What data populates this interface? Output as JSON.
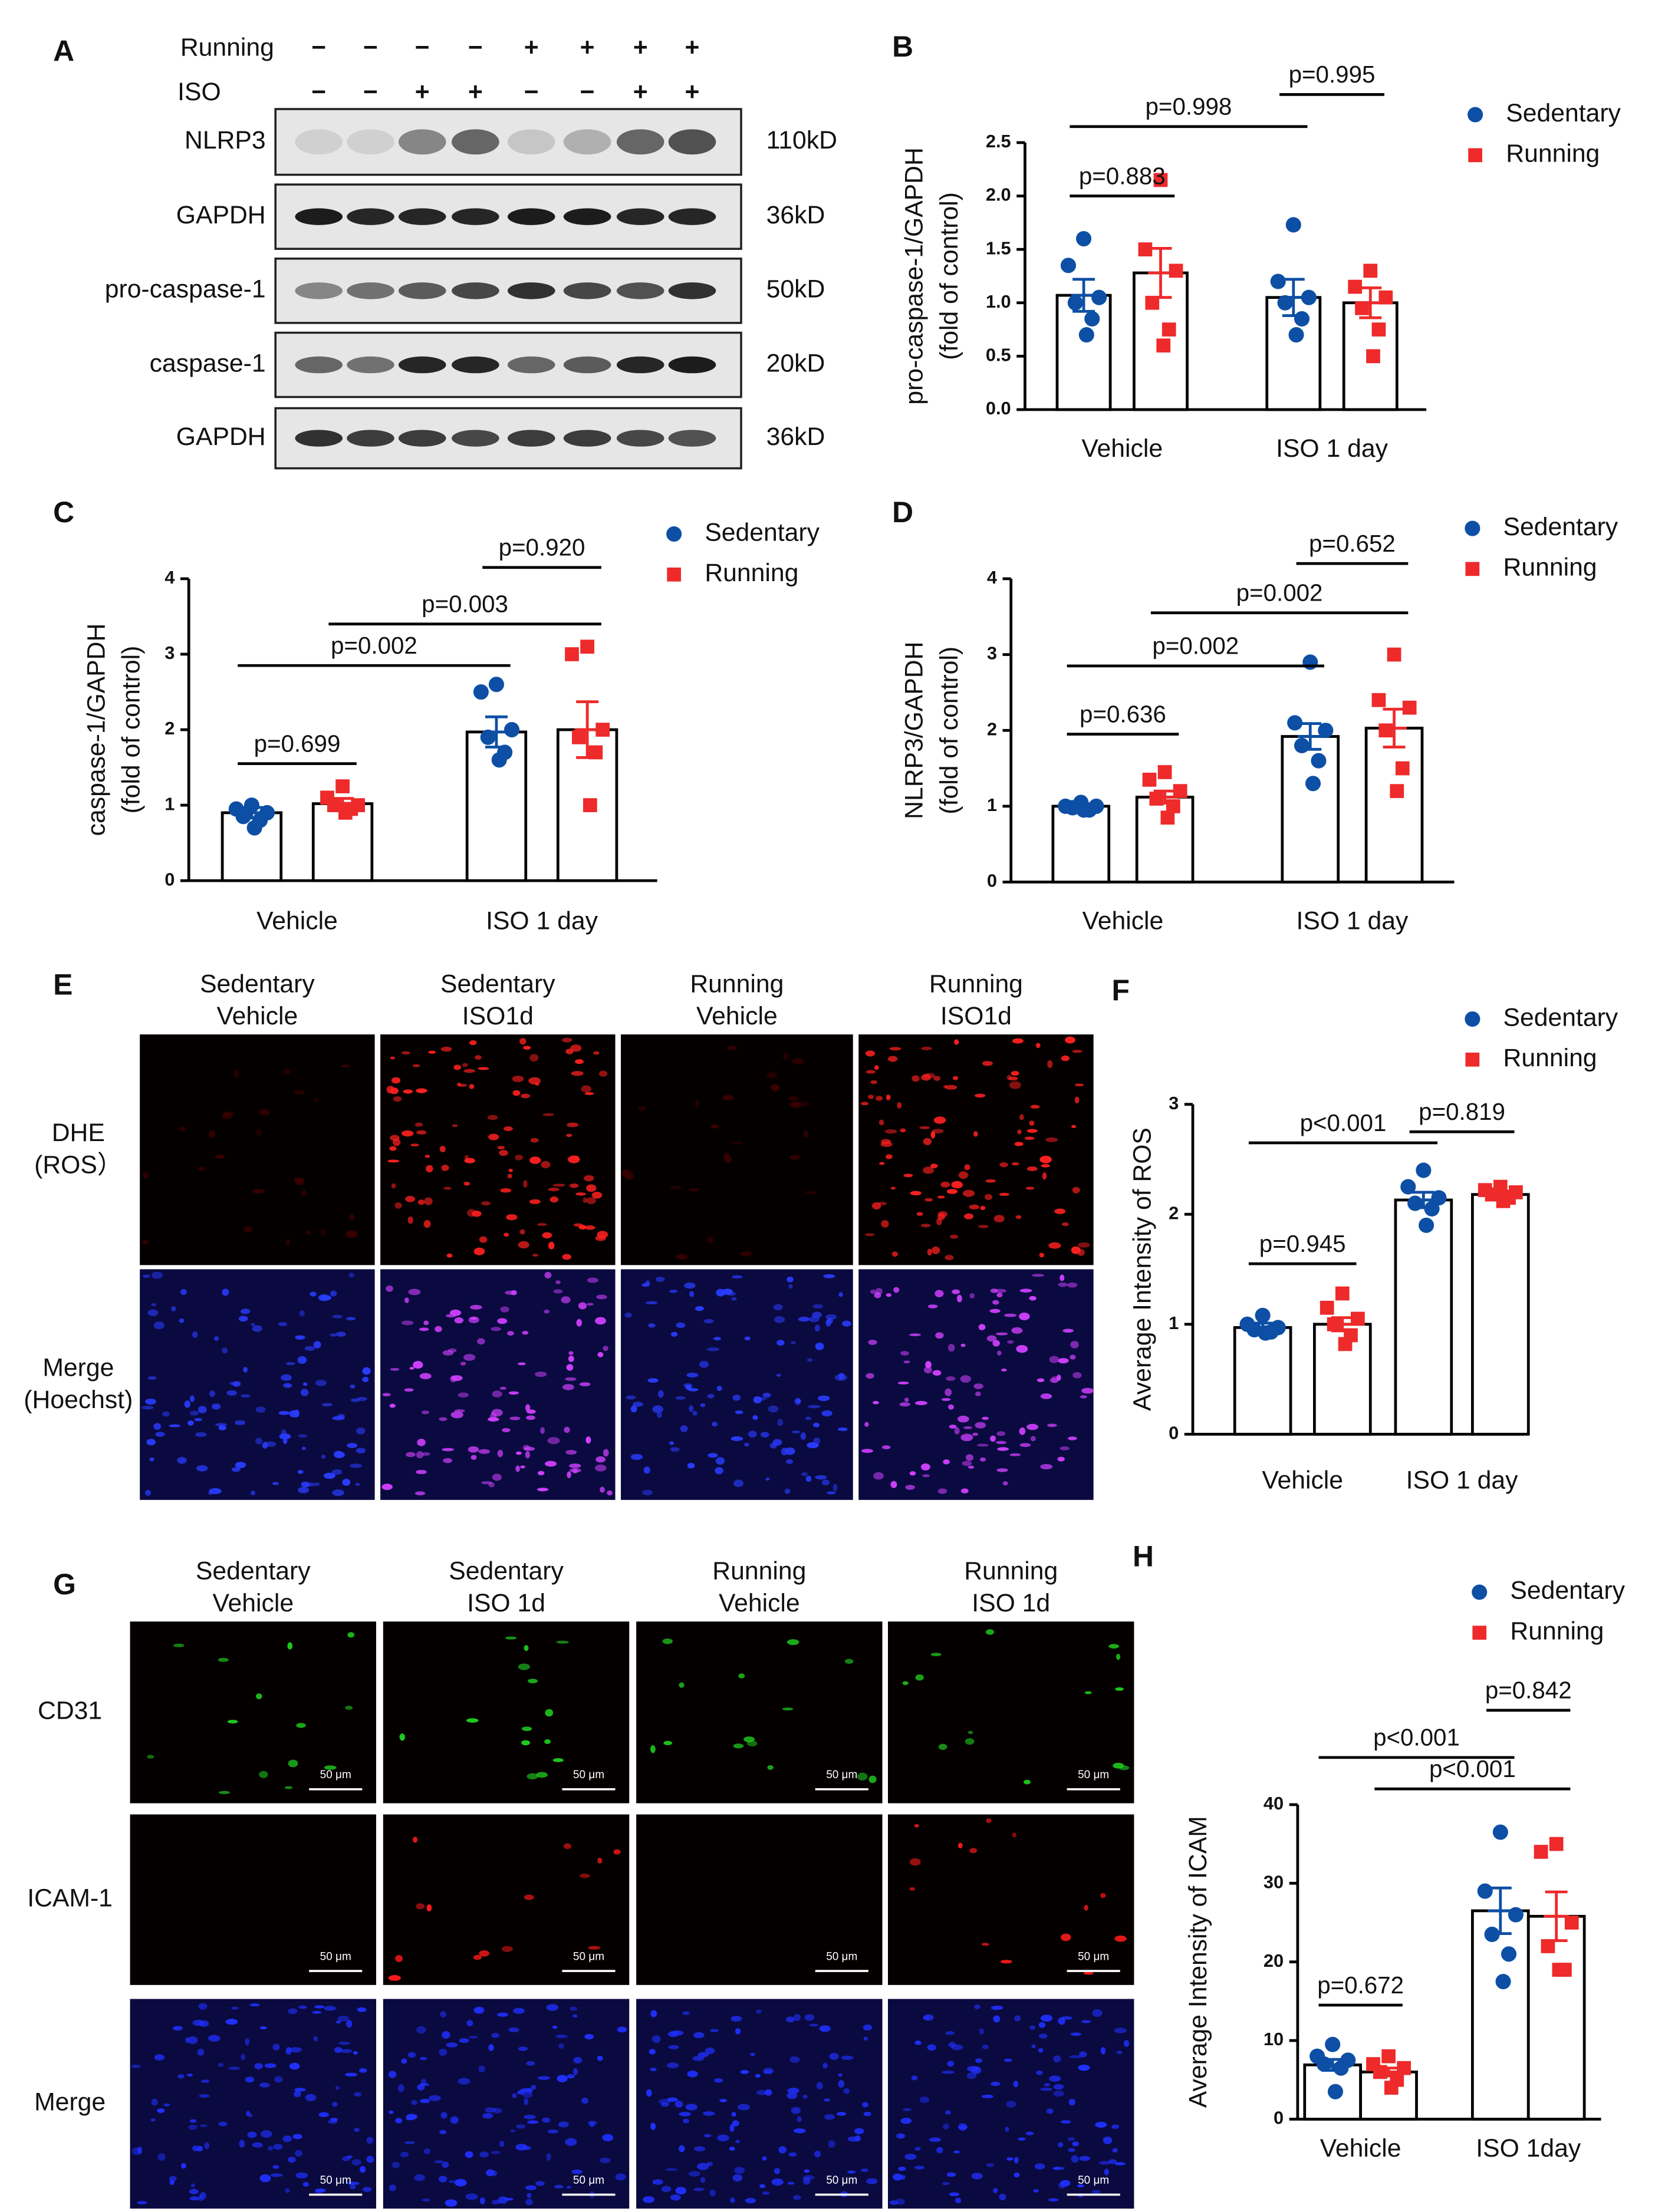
{
  "blot": {
    "label": "A",
    "rows": [
      {
        "name": "Running",
        "signs": [
          "−",
          "−",
          "−",
          "−",
          "+",
          "+",
          "+",
          "+"
        ]
      },
      {
        "name": "ISO",
        "signs": [
          "−",
          "−",
          "+",
          "+",
          "−",
          "−",
          "+",
          "+"
        ]
      }
    ],
    "bands": [
      {
        "name": "NLRP3",
        "size": "110kD"
      },
      {
        "name": "GAPDH",
        "size": "36kD"
      },
      {
        "name": "pro-caspase-1",
        "size": "50kD"
      },
      {
        "name": "caspase-1",
        "size": "20kD"
      },
      {
        "name": "GAPDH",
        "size": "36kD"
      }
    ]
  },
  "dhe": {
    "label": "E",
    "columns": [
      [
        "Sedentary",
        "Vehicle"
      ],
      [
        "Sedentary",
        "ISO1d"
      ],
      [
        "Running",
        "Vehicle"
      ],
      [
        "Running",
        "ISO1d"
      ]
    ],
    "rows": [
      [
        "DHE",
        "(ROS）"
      ],
      [
        "Merge",
        "(Hoechst)"
      ]
    ]
  },
  "staining": {
    "label": "G",
    "columns": [
      [
        "Sedentary",
        "Vehicle"
      ],
      [
        "Sedentary",
        "ISO 1d"
      ],
      [
        "Running",
        "Vehicle"
      ],
      [
        "Running",
        "ISO 1d"
      ]
    ],
    "rows": [
      "CD31",
      "ICAM-1",
      "Merge"
    ],
    "scale_bar": "50 μm"
  },
  "chart_data": [
    {
      "label": "B",
      "type": "bar",
      "ylabel": [
        "pro-caspase-1/GAPDH",
        "(fold  of  control)"
      ],
      "categories": [
        "Vehicle",
        "ISO 1 day"
      ],
      "ylim": [
        0,
        2.5
      ],
      "yticks": [
        {
          "value": 0,
          "label": "0.0"
        },
        0.5,
        {
          "value": 1,
          "label": "1.0"
        },
        1.5,
        {
          "value": 2,
          "label": "2.0"
        },
        2.5
      ],
      "series": [
        {
          "name": "Sedentary",
          "color": "#0d4fa5",
          "marker": "circle",
          "values": [
            1.07,
            1.05
          ],
          "errors": [
            0.15,
            0.17
          ],
          "points": [
            [
              1.6,
              1.35,
              1.05,
              1.0,
              0.85,
              0.7
            ],
            [
              1.73,
              1.2,
              1.05,
              1.0,
              0.85,
              0.7
            ]
          ]
        },
        {
          "name": "Running",
          "color": "#ee2a2a",
          "marker": "square",
          "values": [
            1.28,
            1.0
          ],
          "errors": [
            0.23,
            0.14
          ],
          "points": [
            [
              2.15,
              1.5,
              1.3,
              1.0,
              0.75,
              0.6
            ],
            [
              1.3,
              1.15,
              1.05,
              0.95,
              0.75,
              0.5
            ]
          ]
        }
      ],
      "annotations": [
        "p=0.883",
        "p=0.998",
        "p=0.995"
      ]
    },
    {
      "label": "C",
      "type": "bar",
      "ylabel": [
        "caspase-1/GAPDH",
        "(fold  of  control)"
      ],
      "categories": [
        "Vehicle",
        "ISO 1 day"
      ],
      "ylim": [
        0,
        4
      ],
      "yticks": [
        0,
        1,
        2,
        3,
        4
      ],
      "series": [
        {
          "name": "Sedentary",
          "color": "#0d4fa5",
          "marker": "circle",
          "values": [
            0.9,
            1.97
          ],
          "errors": [
            0.07,
            0.2
          ],
          "points": [
            [
              1.0,
              0.95,
              0.9,
              0.85,
              0.8,
              0.7
            ],
            [
              2.6,
              2.5,
              2.0,
              1.9,
              1.7,
              1.6
            ]
          ]
        },
        {
          "name": "Running",
          "color": "#ee2a2a",
          "marker": "square",
          "values": [
            1.02,
            2.0
          ],
          "errors": [
            0.07,
            0.37
          ],
          "points": [
            [
              1.25,
              1.1,
              1.0,
              1.0,
              0.95,
              0.9
            ],
            [
              3.1,
              3.0,
              2.0,
              1.9,
              1.7,
              1.0
            ]
          ]
        }
      ],
      "annotations": [
        "p=0.699",
        "p=0.002",
        "p=0.003",
        "p=0.920"
      ]
    },
    {
      "label": "D",
      "type": "bar",
      "ylabel": [
        "NLRP3/GAPDH",
        "(fold  of  control)"
      ],
      "categories": [
        "Vehicle",
        "ISO 1 day"
      ],
      "ylim": [
        0,
        4
      ],
      "yticks": [
        0,
        1,
        2,
        3,
        4
      ],
      "series": [
        {
          "name": "Sedentary",
          "color": "#0d4fa5",
          "marker": "circle",
          "values": [
            1.0,
            1.92
          ],
          "errors": [
            0.03,
            0.17
          ],
          "points": [
            [
              1.05,
              1.0,
              1.0,
              0.98,
              0.95,
              0.95
            ],
            [
              2.9,
              2.1,
              2.0,
              1.8,
              1.6,
              1.3
            ]
          ]
        },
        {
          "name": "Running",
          "color": "#ee2a2a",
          "marker": "square",
          "values": [
            1.12,
            2.03
          ],
          "errors": [
            0.08,
            0.25
          ],
          "points": [
            [
              1.45,
              1.35,
              1.2,
              1.1,
              1.0,
              0.85
            ],
            [
              3.0,
              2.4,
              2.3,
              2.0,
              1.5,
              1.2
            ]
          ]
        }
      ],
      "annotations": [
        "p=0.636",
        "p=0.002",
        "p=0.002",
        "p=0.652"
      ]
    },
    {
      "label": "F",
      "type": "bar",
      "ylabel": [
        "Average  Intensity of  ROS"
      ],
      "categories": [
        "Vehicle",
        "ISO 1 day"
      ],
      "ylim": [
        0,
        3
      ],
      "yticks": [
        0,
        1,
        2,
        3
      ],
      "series": [
        {
          "name": "Sedentary",
          "color": "#0d4fa5",
          "marker": "circle",
          "values": [
            0.97,
            2.13
          ],
          "errors": [
            0.04,
            0.07
          ],
          "points": [
            [
              1.08,
              1.0,
              0.97,
              0.95,
              0.93,
              0.92
            ],
            [
              2.4,
              2.25,
              2.15,
              2.1,
              2.05,
              1.9
            ]
          ]
        },
        {
          "name": "Running",
          "color": "#ee2a2a",
          "marker": "square",
          "values": [
            1.0,
            2.18
          ],
          "errors": [
            0.06,
            0.03
          ],
          "points": [
            [
              1.28,
              1.15,
              1.05,
              1.0,
              0.9,
              0.82
            ],
            [
              2.25,
              2.22,
              2.2,
              2.18,
              2.15,
              2.12
            ]
          ]
        }
      ],
      "annotations": [
        "p=0.945",
        "p<0.001",
        "p=0.819"
      ]
    },
    {
      "label": "H",
      "type": "bar",
      "ylabel": [
        "Average Intensity of ICAM"
      ],
      "categories": [
        "Vehicle",
        "ISO 1day"
      ],
      "ylim": [
        0,
        40
      ],
      "yticks": [
        0,
        10,
        20,
        30,
        40
      ],
      "series": [
        {
          "name": "Sedentary",
          "color": "#0d4fa5",
          "marker": "circle",
          "values": [
            6.9,
            26.5
          ],
          "errors": [
            0.7,
            2.9
          ],
          "points": [
            [
              9.5,
              8,
              7.5,
              7,
              6.5,
              3.5
            ],
            [
              36.5,
              29,
              26,
              23.5,
              21,
              17.5
            ]
          ]
        },
        {
          "name": "Running",
          "color": "#ee2a2a",
          "marker": "square",
          "values": [
            6.0,
            25.8
          ],
          "errors": [
            0.5,
            3.1
          ],
          "points": [
            [
              8,
              7,
              6.5,
              6,
              5,
              4
            ],
            [
              35,
              34,
              25,
              22,
              19,
              19
            ]
          ]
        }
      ],
      "annotations": [
        "p=0.672",
        "p<0.001",
        "p<0.001",
        "p=0.842"
      ]
    }
  ]
}
